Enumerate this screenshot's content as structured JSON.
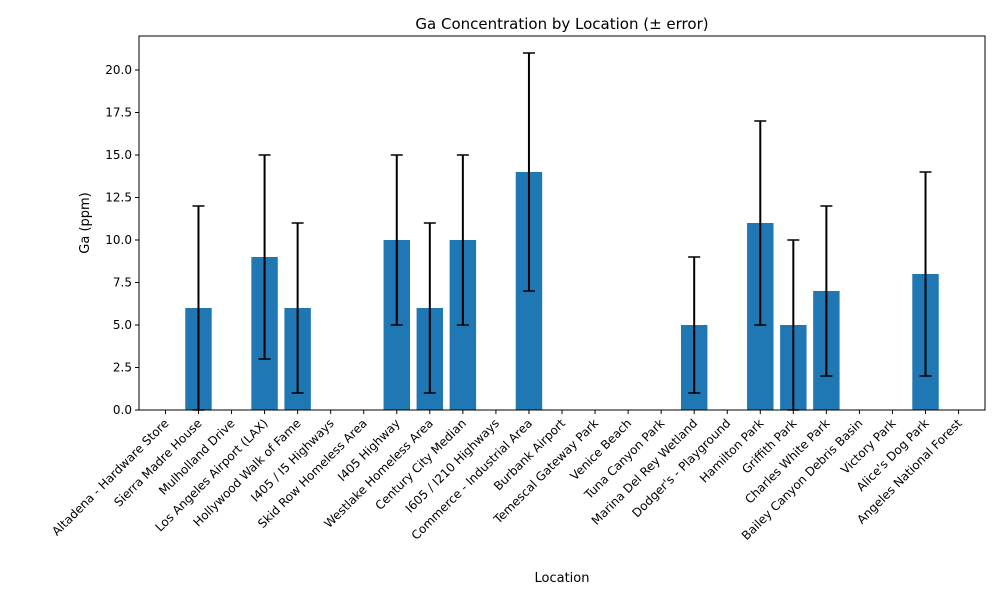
{
  "chart_data": {
    "type": "bar",
    "title": "Ga Concentration by Location (± error)",
    "xlabel": "Location",
    "ylabel": "Ga (ppm)",
    "ylim": [
      0,
      22
    ],
    "yticks": [
      0,
      2.5,
      5,
      7.5,
      10,
      12.5,
      15,
      17.5,
      20
    ],
    "ytick_labels": [
      "0.0",
      "2.5",
      "5.0",
      "7.5",
      "10.0",
      "12.5",
      "15.0",
      "17.5",
      "20.0"
    ],
    "grid": false,
    "bar_color": "#1f77b4",
    "error_color": "#000000",
    "categories": [
      "Altadena - Hardware Store",
      "Sierra Madre House",
      "Mulholland Drive",
      "Los Angeles Airport (LAX)",
      "Hollywood Walk of Fame",
      "I405 / I5 Highways",
      "Skid Row Homeless Area",
      "I405 Highway",
      "Westlake Homeless Area",
      "Century City Median",
      "I605 / I210 Highways",
      "Commerce - Industrial Area",
      "Burbank Airport",
      "Temescal Gateway Park",
      "Venice Beach",
      "Tuna Canyon Park",
      "Marina Del Rey Wetland",
      "Dodger's - Playground",
      "Hamilton Park",
      "Griffith Park",
      "Charles White Park",
      "Bailey Canyon Debris Basin",
      "Victory Park",
      "Alice's Dog Park",
      "Angeles National Forest"
    ],
    "values": [
      null,
      6,
      null,
      9,
      6,
      null,
      null,
      10,
      6,
      10,
      null,
      14,
      null,
      null,
      null,
      null,
      5,
      null,
      11,
      5,
      7,
      null,
      null,
      8,
      null
    ],
    "errors": [
      null,
      6,
      null,
      6,
      5,
      null,
      null,
      5,
      5,
      5,
      null,
      7,
      null,
      null,
      null,
      null,
      4,
      null,
      6,
      5,
      5,
      null,
      null,
      6,
      null
    ]
  }
}
